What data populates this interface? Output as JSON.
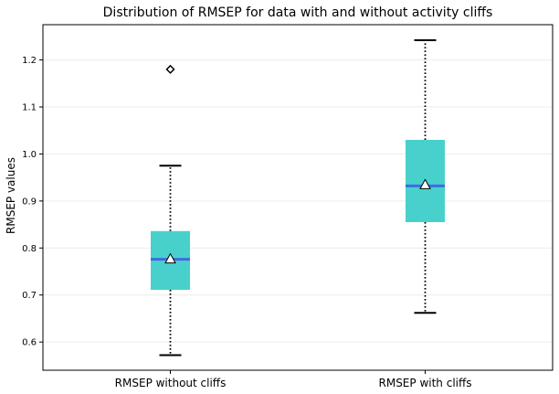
{
  "chart_data": {
    "type": "box",
    "title": "Distribution of RMSEP for data with and without activity cliffs",
    "xlabel": "",
    "ylabel": "RMSEP values",
    "ylim": [
      0.54,
      1.275
    ],
    "yticks": [
      0.6,
      0.7,
      0.8,
      0.9,
      1.0,
      1.1,
      1.2
    ],
    "grid": "horizontal",
    "categories": [
      "RMSEP without cliffs",
      "RMSEP with cliffs"
    ],
    "boxes": [
      {
        "whisker_low": 0.572,
        "q1": 0.711,
        "median": 0.776,
        "q3": 0.836,
        "whisker_high": 0.975,
        "mean": 0.777,
        "outliers": [
          1.18
        ]
      },
      {
        "whisker_low": 0.662,
        "q1": 0.855,
        "median": 0.932,
        "q3": 1.03,
        "whisker_high": 1.242,
        "mean": 0.935,
        "outliers": []
      }
    ],
    "colors": {
      "box_fill": "#48d1cc",
      "median_line": "#4169e1",
      "whisker": "#000000",
      "grid": "#ececec",
      "mean_marker": "#ffffff"
    }
  }
}
